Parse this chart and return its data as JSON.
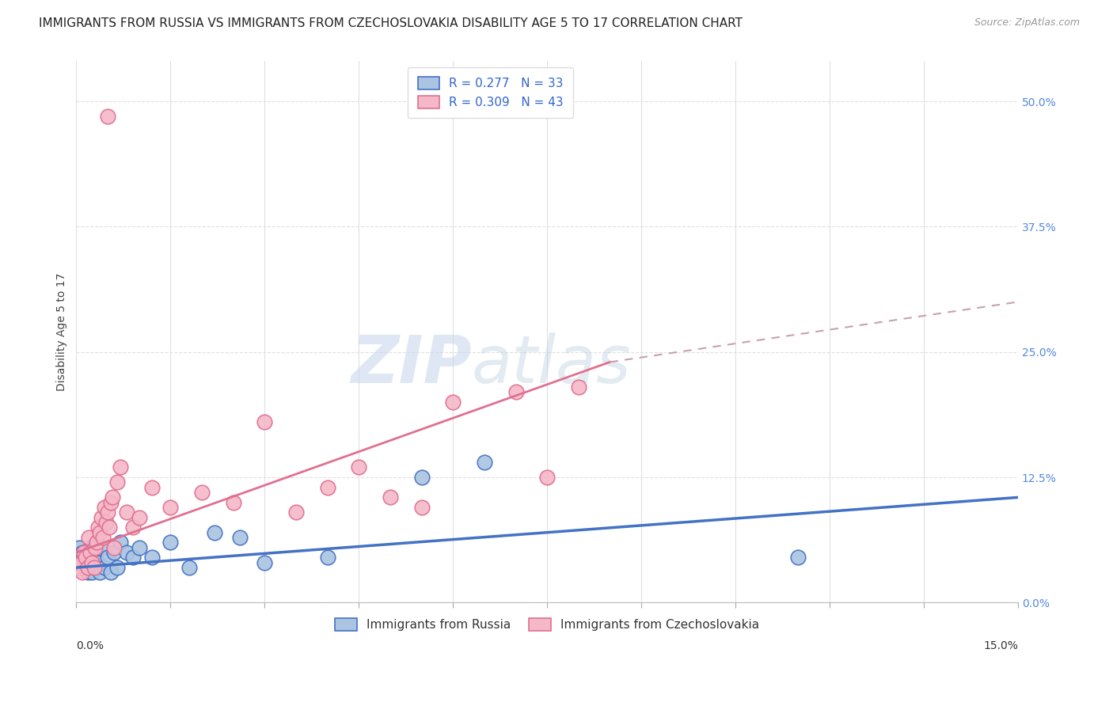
{
  "title": "IMMIGRANTS FROM RUSSIA VS IMMIGRANTS FROM CZECHOSLOVAKIA DISABILITY AGE 5 TO 17 CORRELATION CHART",
  "source": "Source: ZipAtlas.com",
  "ylabel": "Disability Age 5 to 17",
  "ytick_values": [
    0.0,
    12.5,
    25.0,
    37.5,
    50.0
  ],
  "xlim": [
    0.0,
    15.0
  ],
  "ylim": [
    0.0,
    54.0
  ],
  "russia_R": 0.277,
  "russia_N": 33,
  "czech_R": 0.309,
  "czech_N": 43,
  "russia_color": "#aac4e2",
  "russia_line_color": "#4472c4",
  "czech_color": "#f4b8c8",
  "czech_line_color": "#e07090",
  "legend_label_russia": "Immigrants from Russia",
  "legend_label_czech": "Immigrants from Czechoslovakia",
  "watermark_zip": "ZIP",
  "watermark_atlas": "atlas",
  "russia_scatter_x": [
    0.05,
    0.08,
    0.1,
    0.12,
    0.15,
    0.18,
    0.2,
    0.22,
    0.25,
    0.28,
    0.3,
    0.35,
    0.38,
    0.4,
    0.45,
    0.5,
    0.55,
    0.6,
    0.65,
    0.7,
    0.8,
    0.9,
    1.0,
    1.2,
    1.5,
    1.8,
    2.2,
    2.6,
    3.0,
    4.0,
    5.5,
    6.5,
    11.5
  ],
  "russia_scatter_y": [
    5.5,
    4.5,
    5.0,
    3.5,
    4.0,
    3.0,
    4.5,
    5.5,
    3.0,
    4.0,
    3.5,
    4.0,
    3.0,
    5.5,
    3.5,
    4.5,
    3.0,
    5.0,
    3.5,
    6.0,
    5.0,
    4.5,
    5.5,
    4.5,
    6.0,
    3.5,
    7.0,
    6.5,
    4.0,
    4.5,
    12.5,
    14.0,
    4.5
  ],
  "czech_scatter_x": [
    0.05,
    0.08,
    0.1,
    0.12,
    0.15,
    0.18,
    0.2,
    0.22,
    0.25,
    0.28,
    0.3,
    0.32,
    0.35,
    0.38,
    0.4,
    0.42,
    0.45,
    0.48,
    0.5,
    0.52,
    0.55,
    0.58,
    0.6,
    0.65,
    0.7,
    0.8,
    0.9,
    1.0,
    1.2,
    1.5,
    2.0,
    2.5,
    3.0,
    3.5,
    4.0,
    4.5,
    5.0,
    5.5,
    6.0,
    7.0,
    7.5,
    8.0,
    0.5
  ],
  "czech_scatter_y": [
    3.5,
    4.0,
    3.0,
    5.0,
    4.5,
    3.5,
    6.5,
    5.0,
    4.0,
    3.5,
    5.5,
    6.0,
    7.5,
    7.0,
    8.5,
    6.5,
    9.5,
    8.0,
    9.0,
    7.5,
    10.0,
    10.5,
    5.5,
    12.0,
    13.5,
    9.0,
    7.5,
    8.5,
    11.5,
    9.5,
    11.0,
    10.0,
    18.0,
    9.0,
    11.5,
    13.5,
    10.5,
    9.5,
    20.0,
    21.0,
    12.5,
    21.5,
    48.5
  ],
  "grid_color": "#e0e0e0",
  "background_color": "#ffffff",
  "title_fontsize": 11,
  "axis_label_fontsize": 10,
  "tick_fontsize": 10,
  "legend_fontsize": 11,
  "russia_trend_x0": 0.0,
  "russia_trend_y0": 3.5,
  "russia_trend_x1": 15.0,
  "russia_trend_y1": 10.5,
  "czech_trend_x0": 0.0,
  "czech_trend_y0": 5.0,
  "czech_trend_x1": 8.5,
  "czech_trend_y1": 24.0,
  "czech_dash_x0": 8.5,
  "czech_dash_y0": 24.0,
  "czech_dash_x1": 15.0,
  "czech_dash_y1": 30.0
}
